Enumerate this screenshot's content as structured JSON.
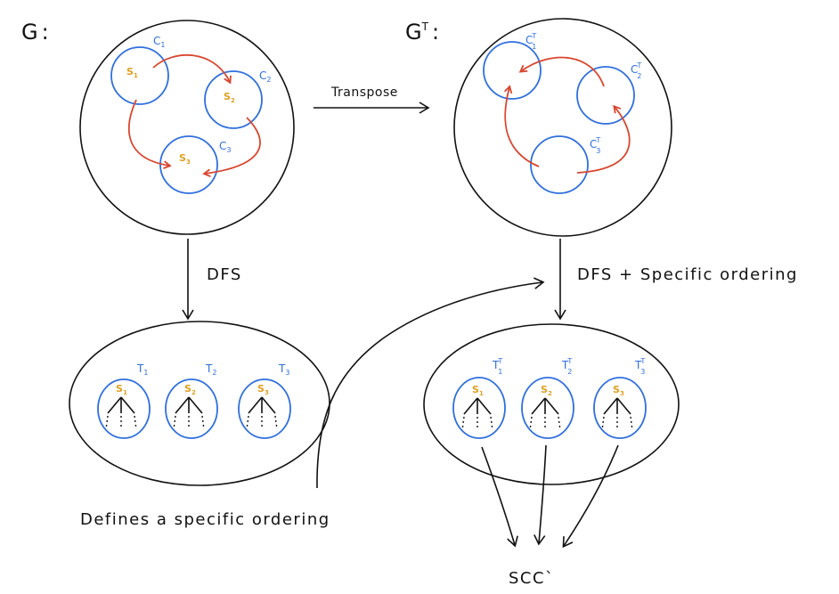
{
  "graph_g": {
    "label": "G",
    "colon": ":",
    "components": [
      {
        "name": "C",
        "sub": "1"
      },
      {
        "name": "C",
        "sub": "2"
      },
      {
        "name": "C",
        "sub": "3"
      }
    ],
    "sources": [
      {
        "name": "S",
        "sub": "1"
      },
      {
        "name": "S",
        "sub": "2"
      },
      {
        "name": "S",
        "sub": "3"
      }
    ]
  },
  "graph_gt": {
    "label": "G",
    "sup": "T",
    "colon": ":",
    "components": [
      {
        "name": "C",
        "sub": "1",
        "sup": "T"
      },
      {
        "name": "C",
        "sub": "2",
        "sup": "T"
      },
      {
        "name": "C",
        "sub": "3",
        "sup": "T"
      }
    ]
  },
  "transpose_label": "Transpose",
  "dfs_label": "DFS",
  "dfs_ordering_label": "DFS + Specific ordering",
  "forest_t": {
    "trees": [
      {
        "name": "T",
        "sub": "1",
        "root": "S",
        "root_sub": "1"
      },
      {
        "name": "T",
        "sub": "2",
        "root": "S",
        "root_sub": "2"
      },
      {
        "name": "T",
        "sub": "3",
        "root": "S",
        "root_sub": "3"
      }
    ]
  },
  "forest_tt": {
    "trees": [
      {
        "name": "T",
        "sub": "1",
        "sup": "T",
        "root": "S",
        "root_sub": "1"
      },
      {
        "name": "T",
        "sub": "2",
        "sup": "T",
        "root": "S",
        "root_sub": "2"
      },
      {
        "name": "T",
        "sub": "3",
        "sup": "T",
        "root": "S",
        "root_sub": "3"
      }
    ]
  },
  "defines_label": "Defines a specific ordering",
  "scc_label": "SCC`",
  "colors": {
    "component_circle": "#2f6fde",
    "source_label": "#e0a020",
    "edge": "#d9462f",
    "outline": "#111111"
  }
}
